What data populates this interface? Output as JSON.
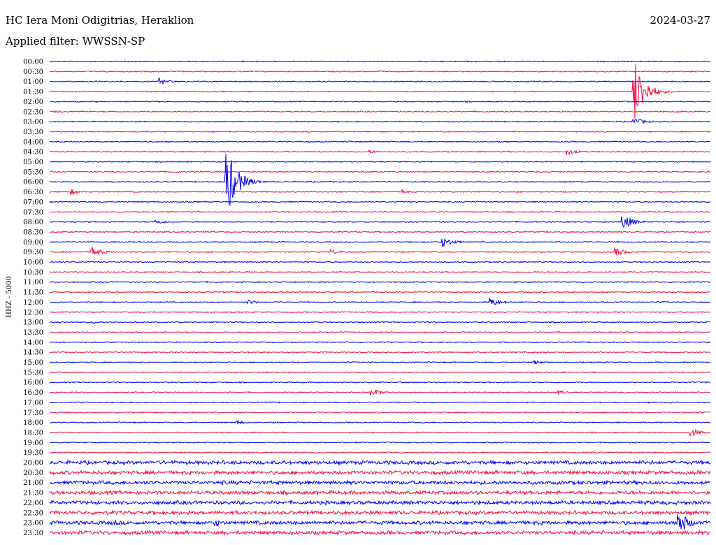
{
  "header": {
    "station": "HC Iera Moni Odigitrias, Heraklion",
    "date": "2024-03-27",
    "filter": "Applied filter: WWSSN-SP"
  },
  "colors": {
    "even_hour": "#0000ee",
    "half_hour": "#ee1144"
  },
  "chart_data": {
    "type": "line",
    "title": "",
    "ylabel": "HHZ - 5000",
    "row_labels": [
      "00:00",
      "00:30",
      "01:00",
      "01:30",
      "02:00",
      "02:30",
      "03:00",
      "03:30",
      "04:00",
      "04:30",
      "05:00",
      "05:30",
      "06:00",
      "06:30",
      "07:00",
      "07:30",
      "08:00",
      "08:30",
      "09:00",
      "09:30",
      "10:00",
      "10:30",
      "11:00",
      "11:30",
      "12:00",
      "12:30",
      "13:00",
      "13:30",
      "14:00",
      "14:30",
      "15:00",
      "15:30",
      "16:00",
      "16:30",
      "17:00",
      "17:30",
      "18:00",
      "18:30",
      "19:00",
      "19:30",
      "20:00",
      "20:30",
      "21:00",
      "21:30",
      "22:00",
      "22:30",
      "23:00",
      "23:30"
    ],
    "row_minutes": 30,
    "events": [
      {
        "row": 1,
        "minute": 15,
        "amplitude": 1.5
      },
      {
        "row": 2,
        "minute": 5,
        "amplitude": 5
      },
      {
        "row": 5,
        "minute": 0.3,
        "amplitude": 2
      },
      {
        "row": 5,
        "minute": 28.5,
        "amplitude": 1.5
      },
      {
        "row": 6,
        "minute": 26.5,
        "amplitude": 6
      },
      {
        "row": 3,
        "minute": 26.5,
        "amplitude": 52
      },
      {
        "row": 8,
        "minute": 13.5,
        "amplitude": 1.5
      },
      {
        "row": 9,
        "minute": 23.5,
        "amplitude": 5
      },
      {
        "row": 9,
        "minute": 14.5,
        "amplitude": 2.5
      },
      {
        "row": 11,
        "minute": 5.5,
        "amplitude": 2.5
      },
      {
        "row": 12,
        "minute": 8,
        "amplitude": 55
      },
      {
        "row": 13,
        "minute": 1,
        "amplitude": 4
      },
      {
        "row": 13,
        "minute": 16,
        "amplitude": 3
      },
      {
        "row": 16,
        "minute": 4.8,
        "amplitude": 4
      },
      {
        "row": 16,
        "minute": 26,
        "amplitude": 12
      },
      {
        "row": 18,
        "minute": 17.8,
        "amplitude": 8
      },
      {
        "row": 19,
        "minute": 1.9,
        "amplitude": 8
      },
      {
        "row": 19,
        "minute": 12.8,
        "amplitude": 4
      },
      {
        "row": 19,
        "minute": 25.7,
        "amplitude": 6
      },
      {
        "row": 24,
        "minute": 9,
        "amplitude": 4
      },
      {
        "row": 24,
        "minute": 20,
        "amplitude": 7
      },
      {
        "row": 26,
        "minute": 2,
        "amplitude": 2
      },
      {
        "row": 30,
        "minute": 22,
        "amplitude": 3
      },
      {
        "row": 33,
        "minute": 14.6,
        "amplitude": 6
      },
      {
        "row": 33,
        "minute": 23.1,
        "amplitude": 3
      },
      {
        "row": 36,
        "minute": 8.5,
        "amplitude": 3
      },
      {
        "row": 37,
        "minute": 29.1,
        "amplitude": 6
      },
      {
        "row": 46,
        "minute": 3,
        "amplitude": 4
      },
      {
        "row": 46,
        "minute": 7.5,
        "amplitude": 6
      },
      {
        "row": 46,
        "minute": 28.5,
        "amplitude": 20
      }
    ],
    "noise": {
      "baseline": 0.7,
      "rows_high": [
        40,
        41,
        42,
        43,
        44,
        45,
        46,
        47
      ],
      "high_level": 2.2
    }
  }
}
